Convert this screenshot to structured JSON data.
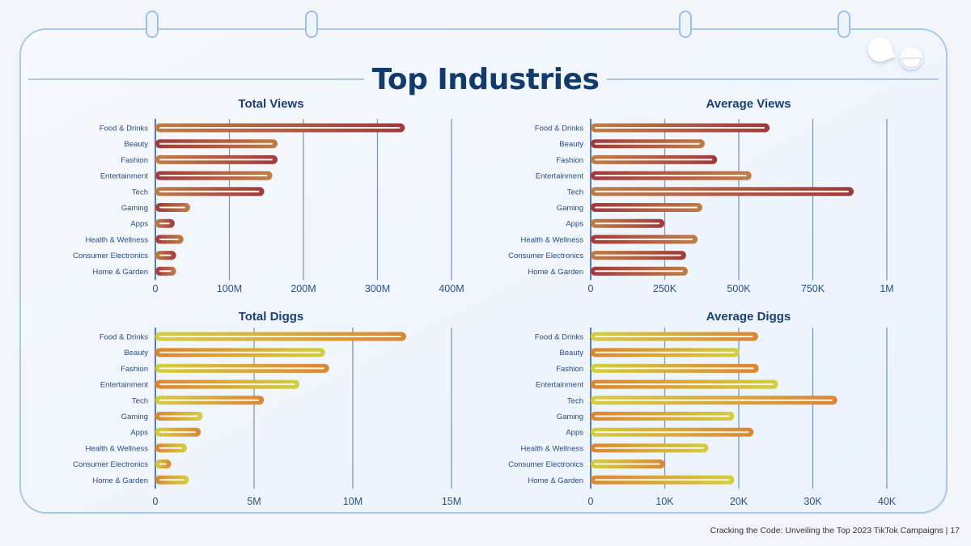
{
  "header": {
    "title": "Top Industries"
  },
  "footer": {
    "text": "Cracking the Code: Unveiling the Top 2023 TikTok Campaigns |  17"
  },
  "colors": {
    "title": "#123a6b",
    "frame": "#a9c8ea",
    "views_light": "#c17d45",
    "views_dark": "#a2393d",
    "diggs_light": "#d3cf3e",
    "diggs_dark": "#dd8532"
  },
  "logo": {
    "icon": "pacman-eyes-logo"
  },
  "chart_data": [
    {
      "type": "bar",
      "orientation": "horizontal",
      "title": "Total Views",
      "categories": [
        "Food & Drinks",
        "Beauty",
        "Fashion",
        "Entertainment",
        "Tech",
        "Gaming",
        "Apps",
        "Health & Wellness",
        "Consumer Electronics",
        "Home & Garden"
      ],
      "values": [
        337000000,
        165000000,
        165000000,
        158000000,
        147000000,
        47000000,
        26000000,
        38000000,
        28000000,
        28000000
      ],
      "xlim": [
        0,
        400000000
      ],
      "ticks": [
        0,
        100000000,
        200000000,
        300000000,
        400000000
      ],
      "tick_labels": [
        "0",
        "100M",
        "200M",
        "300M",
        "400M"
      ],
      "grid": true,
      "palette": "views"
    },
    {
      "type": "bar",
      "orientation": "horizontal",
      "title": "Average Views",
      "categories": [
        "Food & Drinks",
        "Beauty",
        "Fashion",
        "Entertainment",
        "Tech",
        "Gaming",
        "Apps",
        "Health & Wellness",
        "Consumer Electronics",
        "Home & Garden"
      ],
      "values": [
        604000,
        385000,
        427000,
        543000,
        888000,
        377000,
        249000,
        361000,
        322000,
        328000
      ],
      "xlim": [
        0,
        1000000
      ],
      "ticks": [
        0,
        250000,
        500000,
        750000,
        1000000
      ],
      "tick_labels": [
        "0",
        "250K",
        "500K",
        "750K",
        "1M"
      ],
      "grid": true,
      "palette": "views"
    },
    {
      "type": "bar",
      "orientation": "horizontal",
      "title": "Total Diggs",
      "categories": [
        "Food & Drinks",
        "Beauty",
        "Fashion",
        "Entertainment",
        "Tech",
        "Gaming",
        "Apps",
        "Health & Wellness",
        "Consumer Electronics",
        "Home & Garden"
      ],
      "values": [
        12700000,
        8600000,
        8800000,
        7300000,
        5500000,
        2400000,
        2300000,
        1600000,
        800000,
        1700000
      ],
      "xlim": [
        0,
        15000000
      ],
      "ticks": [
        0,
        5000000,
        10000000,
        15000000
      ],
      "tick_labels": [
        "0",
        "5M",
        "10M",
        "15M"
      ],
      "grid": true,
      "palette": "diggs"
    },
    {
      "type": "bar",
      "orientation": "horizontal",
      "title": "Average Diggs",
      "categories": [
        "Food & Drinks",
        "Beauty",
        "Fashion",
        "Entertainment",
        "Tech",
        "Gaming",
        "Apps",
        "Health & Wellness",
        "Consumer Electronics",
        "Home & Garden"
      ],
      "values": [
        22600,
        20100,
        22700,
        25300,
        33300,
        19400,
        22000,
        15900,
        10000,
        19400
      ],
      "xlim": [
        0,
        40000
      ],
      "ticks": [
        0,
        10000,
        20000,
        30000,
        40000
      ],
      "tick_labels": [
        "0",
        "10K",
        "20K",
        "30K",
        "40K"
      ],
      "grid": true,
      "palette": "diggs"
    }
  ]
}
